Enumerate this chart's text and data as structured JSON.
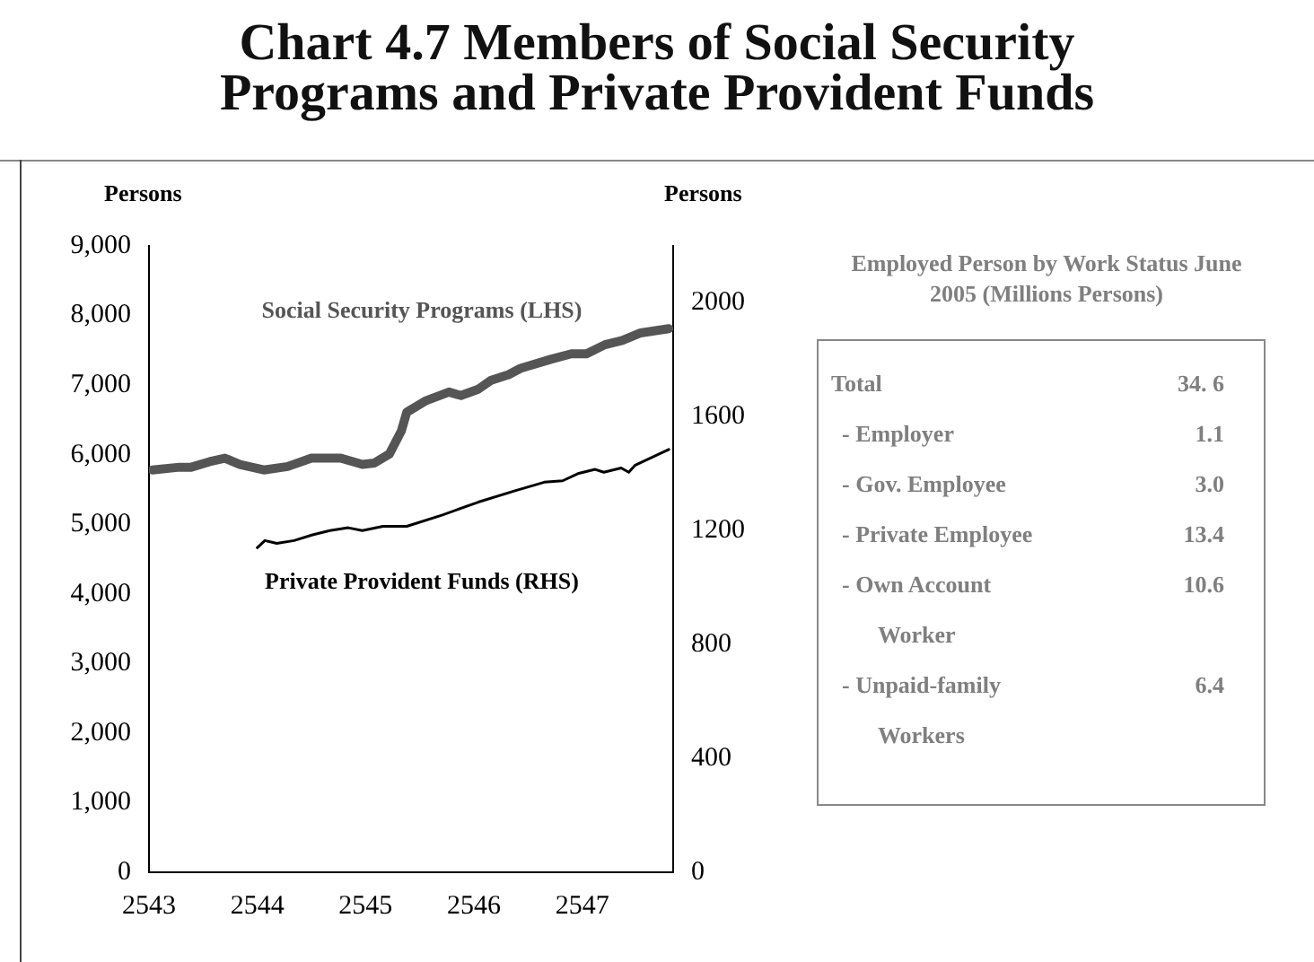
{
  "chart_data": [
    {
      "type": "line",
      "title": "Chart 4.7  Members of Social Security Programs and Private Provident Funds",
      "ylabel": "Persons",
      "y2label": "Persons",
      "xlim": [
        2543,
        2547.84
      ],
      "xticks": [
        2543,
        2544,
        2545,
        2546,
        2547
      ],
      "ylim": [
        0,
        9000
      ],
      "yticks": [
        {
          "value": 0,
          "label": "0"
        },
        {
          "value": 1000,
          "label": "1,000"
        },
        {
          "value": 2000,
          "label": "2,000"
        },
        {
          "value": 3000,
          "label": "3,000"
        },
        {
          "value": 4000,
          "label": "4,000"
        },
        {
          "value": 5000,
          "label": "5,000"
        },
        {
          "value": 6000,
          "label": "6,000"
        },
        {
          "value": 7000,
          "label": "7,000"
        },
        {
          "value": 8000,
          "label": "8,000"
        },
        {
          "value": 9000,
          "label": "9,000"
        }
      ],
      "y2lim": [
        0,
        2200
      ],
      "y2ticks": [
        0,
        400,
        800,
        1200,
        1600,
        2000
      ],
      "series": [
        {
          "name": "Social Security Programs (LHS)",
          "color": "#555555",
          "x": [
            2543.03,
            2543.28,
            2543.39,
            2543.56,
            2543.7,
            2543.84,
            2544.06,
            2544.28,
            2544.5,
            2544.77,
            2544.97,
            2545.08,
            2545.22,
            2545.33,
            2545.38,
            2545.55,
            2545.77,
            2545.88,
            2546.04,
            2546.16,
            2546.32,
            2546.43,
            2546.71,
            2546.9,
            2547.04,
            2547.21,
            2547.37,
            2547.54,
            2547.8
          ],
          "values": [
            5780,
            5820,
            5820,
            5900,
            5950,
            5860,
            5780,
            5830,
            5950,
            5950,
            5860,
            5880,
            6010,
            6340,
            6610,
            6770,
            6900,
            6850,
            6940,
            7070,
            7150,
            7240,
            7370,
            7450,
            7450,
            7580,
            7640,
            7750,
            7810
          ]
        },
        {
          "name": "Private Provident Funds (RHS)",
          "color": "#000000",
          "axis": "y2",
          "x": [
            2544.0,
            2544.07,
            2544.18,
            2544.34,
            2544.51,
            2544.67,
            2544.84,
            2544.97,
            2545.16,
            2545.38,
            2545.71,
            2546.04,
            2546.38,
            2546.65,
            2546.82,
            2546.96,
            2547.12,
            2547.2,
            2547.36,
            2547.43,
            2547.49,
            2547.8
          ],
          "values": [
            1140,
            1165,
            1155,
            1165,
            1185,
            1200,
            1210,
            1200,
            1215,
            1215,
            1255,
            1300,
            1340,
            1370,
            1375,
            1400,
            1415,
            1405,
            1420,
            1405,
            1430,
            1485
          ]
        }
      ]
    },
    {
      "type": "other",
      "title": "Employed Person by Work  Status June 2005 (Millions Persons)",
      "categories": [
        "Total",
        "- Employer",
        "- Gov. Employee",
        "- Private Employee",
        "- Own Account Worker",
        "- Unpaid-family Workers"
      ],
      "value_labels": [
        "34. 6",
        "1.1",
        "3.0",
        "13.4",
        "10.6",
        "6.4"
      ]
    }
  ]
}
